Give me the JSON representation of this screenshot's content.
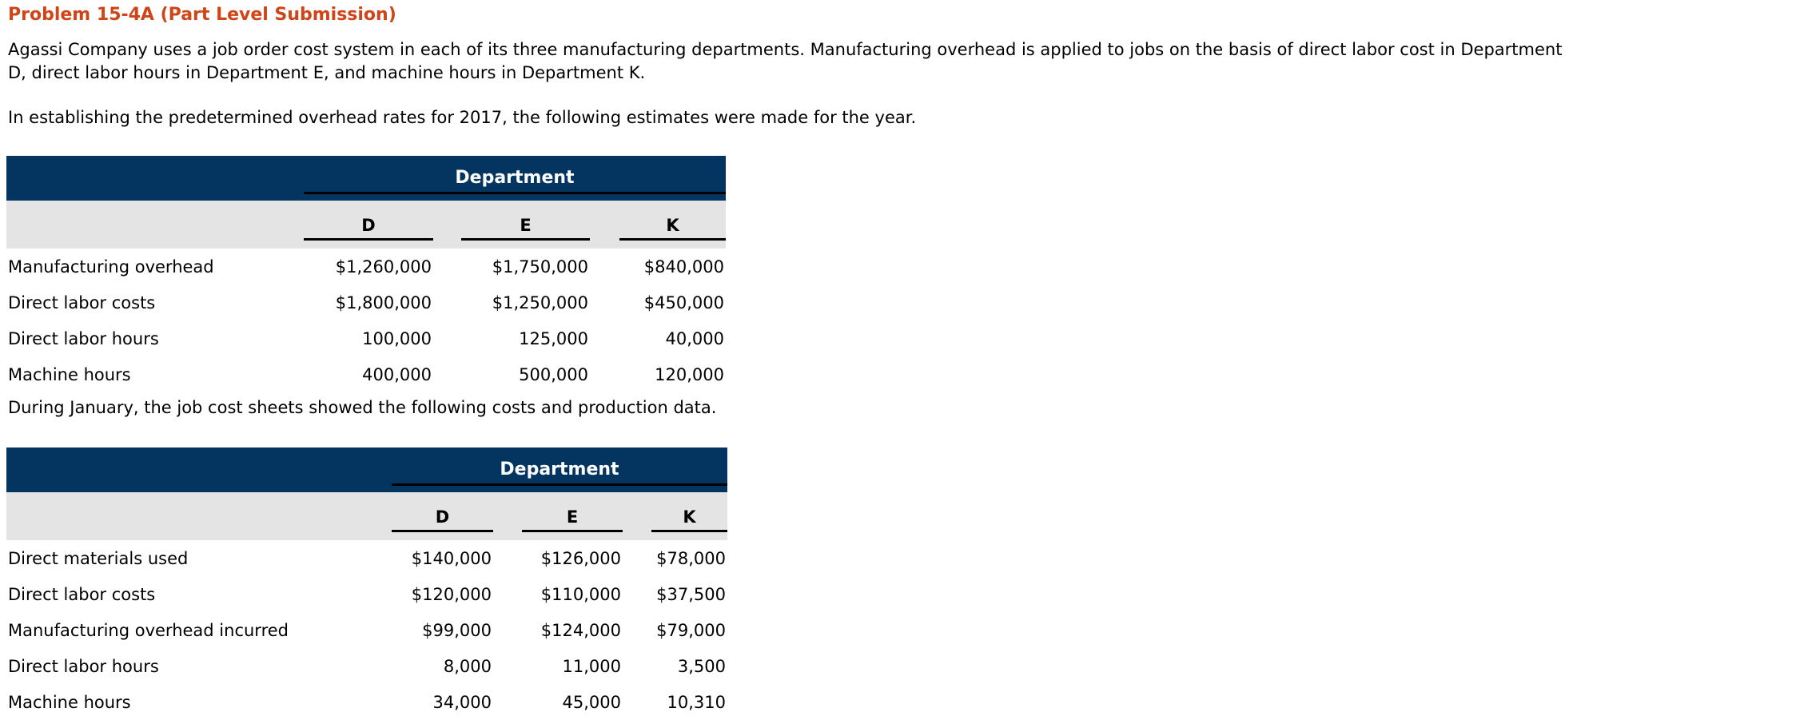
{
  "page": {
    "title": "Problem 15-4A (Part Level Submission)",
    "intro_lines": [
      "Agassi Company uses a job order cost system in each of its three manufacturing departments. Manufacturing overhead is applied to jobs on the basis of direct labor cost in Department",
      "D, direct labor hours in Department E, and machine hours in Department K."
    ],
    "estimates_intro": "In establishing the predetermined overhead rates for 2017, the following estimates were made for the year.",
    "january_intro": "During January, the job cost sheets showed the following costs and production data."
  },
  "colors": {
    "header_navy": "#033560",
    "subheader_gray": "#e4e4e4",
    "title_orange": "#d04517"
  },
  "estimates_table": {
    "group_header": "Department",
    "columns": [
      "D",
      "E",
      "K"
    ],
    "rows": [
      {
        "label": "Manufacturing overhead",
        "values": [
          "$1,260,000",
          "$1,750,000",
          "$840,000"
        ]
      },
      {
        "label": "Direct labor costs",
        "values": [
          "$1,800,000",
          "$1,250,000",
          "$450,000"
        ]
      },
      {
        "label": "Direct labor hours",
        "values": [
          "100,000",
          "125,000",
          "40,000"
        ]
      },
      {
        "label": "Machine hours",
        "values": [
          "400,000",
          "500,000",
          "120,000"
        ]
      }
    ]
  },
  "january_table": {
    "group_header": "Department",
    "columns": [
      "D",
      "E",
      "K"
    ],
    "rows": [
      {
        "label": "Direct materials used",
        "values": [
          "$140,000",
          "$126,000",
          "$78,000"
        ]
      },
      {
        "label": "Direct labor costs",
        "values": [
          "$120,000",
          "$110,000",
          "$37,500"
        ]
      },
      {
        "label": "Manufacturing overhead incurred",
        "values": [
          "$99,000",
          "$124,000",
          "$79,000"
        ]
      },
      {
        "label": "Direct labor hours",
        "values": [
          "8,000",
          "11,000",
          "3,500"
        ]
      },
      {
        "label": "Machine hours",
        "values": [
          "34,000",
          "45,000",
          "10,310"
        ]
      }
    ]
  }
}
